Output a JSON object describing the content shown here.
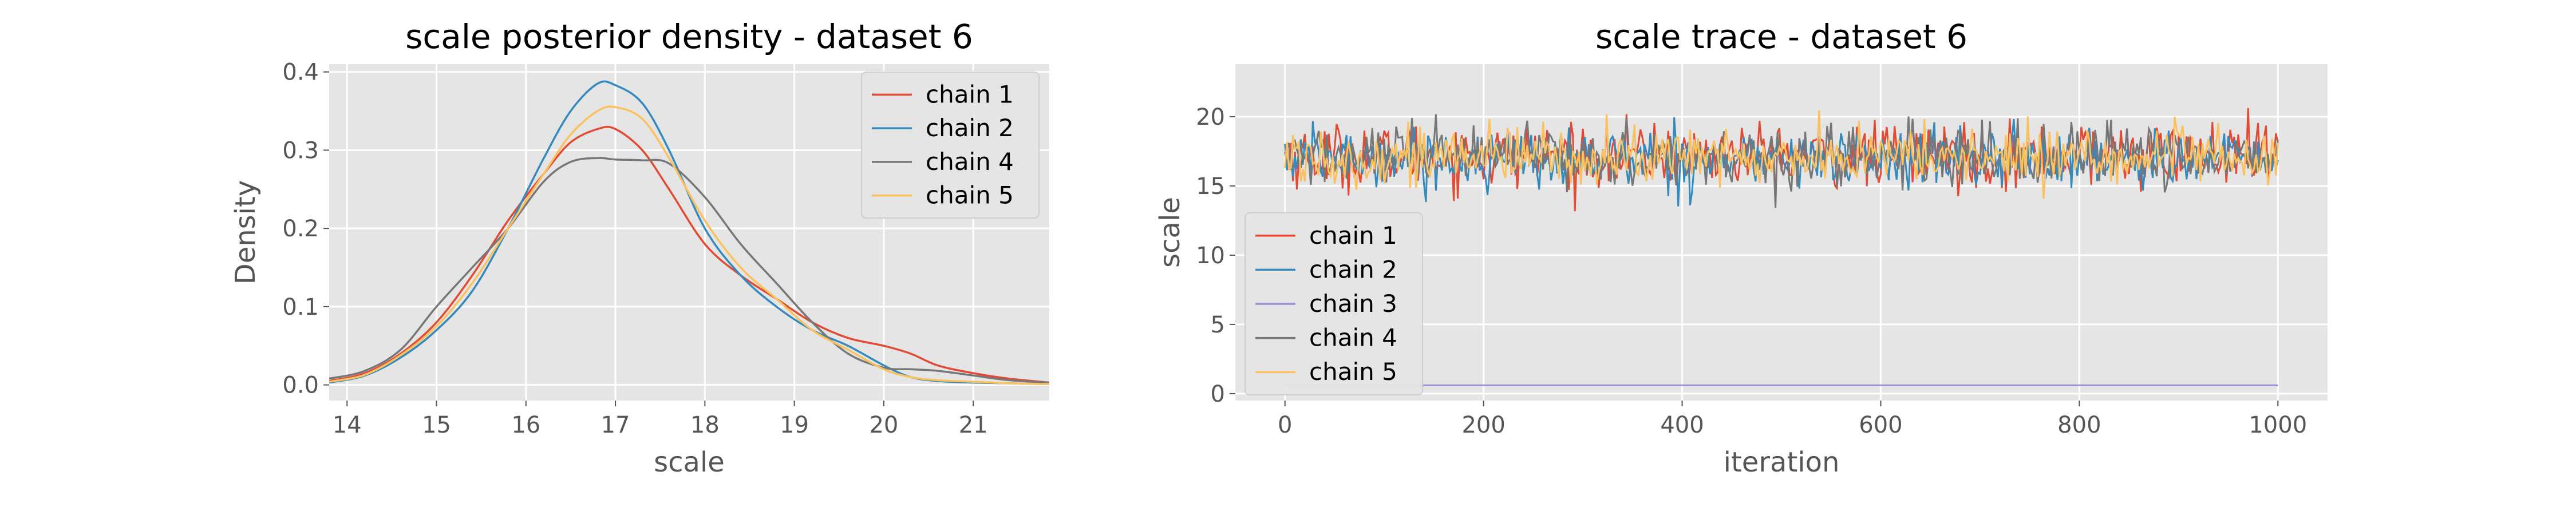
{
  "chart_data": [
    {
      "type": "line",
      "title": "scale posterior density - dataset 6",
      "xlabel": "scale",
      "ylabel": "Density",
      "xlim": [
        13.8,
        21.85
      ],
      "ylim": [
        -0.02,
        0.41
      ],
      "xticks": [
        14,
        15,
        16,
        17,
        18,
        19,
        20,
        21
      ],
      "yticks": [
        0.0,
        0.1,
        0.2,
        0.3,
        0.4
      ],
      "ytick_labels": [
        "0.0",
        "0.1",
        "0.2",
        "0.3",
        "0.4"
      ],
      "grid": true,
      "legend_position": "top-right",
      "series": [
        {
          "name": "chain 1",
          "color": "#E24A33",
          "x": [
            13.8,
            14.2,
            14.6,
            15.0,
            15.4,
            15.8,
            16.2,
            16.5,
            16.8,
            17.0,
            17.3,
            17.6,
            18.0,
            18.4,
            18.8,
            19.2,
            19.6,
            20.0,
            20.3,
            20.6,
            21.0,
            21.4,
            21.85
          ],
          "y": [
            0.005,
            0.015,
            0.04,
            0.08,
            0.14,
            0.21,
            0.27,
            0.31,
            0.327,
            0.327,
            0.3,
            0.25,
            0.18,
            0.14,
            0.11,
            0.08,
            0.06,
            0.05,
            0.04,
            0.025,
            0.015,
            0.008,
            0.003
          ]
        },
        {
          "name": "chain 2",
          "color": "#348ABD",
          "x": [
            13.8,
            14.2,
            14.6,
            15.0,
            15.4,
            15.8,
            16.2,
            16.5,
            16.8,
            17.0,
            17.3,
            17.6,
            18.0,
            18.4,
            18.8,
            19.2,
            19.6,
            20.0,
            20.3,
            20.6,
            21.0,
            21.4,
            21.85
          ],
          "y": [
            0.003,
            0.012,
            0.035,
            0.07,
            0.12,
            0.2,
            0.29,
            0.35,
            0.385,
            0.383,
            0.36,
            0.3,
            0.2,
            0.14,
            0.1,
            0.07,
            0.05,
            0.025,
            0.01,
            0.005,
            0.003,
            0.002,
            0.001
          ]
        },
        {
          "name": "chain 4",
          "color": "#777777",
          "x": [
            13.8,
            14.2,
            14.6,
            15.0,
            15.4,
            15.8,
            16.2,
            16.5,
            16.8,
            17.0,
            17.3,
            17.6,
            18.0,
            18.4,
            18.8,
            19.2,
            19.6,
            20.0,
            20.3,
            20.6,
            21.0,
            21.4,
            21.85
          ],
          "y": [
            0.008,
            0.018,
            0.045,
            0.1,
            0.15,
            0.2,
            0.26,
            0.285,
            0.29,
            0.288,
            0.287,
            0.283,
            0.24,
            0.18,
            0.13,
            0.08,
            0.04,
            0.022,
            0.02,
            0.018,
            0.012,
            0.006,
            0.003
          ]
        },
        {
          "name": "chain 5",
          "color": "#FBC15E",
          "x": [
            13.8,
            14.2,
            14.6,
            15.0,
            15.4,
            15.8,
            16.2,
            16.5,
            16.8,
            17.0,
            17.3,
            17.6,
            18.0,
            18.4,
            18.8,
            19.2,
            19.6,
            20.0,
            20.3,
            20.6,
            21.0,
            21.4,
            21.85
          ],
          "y": [
            0.004,
            0.013,
            0.038,
            0.075,
            0.13,
            0.2,
            0.27,
            0.32,
            0.35,
            0.355,
            0.34,
            0.29,
            0.21,
            0.15,
            0.11,
            0.07,
            0.045,
            0.02,
            0.01,
            0.006,
            0.004,
            0.002,
            0.001
          ]
        }
      ]
    },
    {
      "type": "line",
      "title": "scale trace - dataset 6",
      "xlabel": "iteration",
      "ylabel": "scale",
      "xlim": [
        -50,
        1050
      ],
      "ylim": [
        -0.5,
        23.8
      ],
      "xticks": [
        0,
        200,
        400,
        600,
        800,
        1000
      ],
      "yticks": [
        0,
        5,
        10,
        15,
        20
      ],
      "grid": true,
      "legend_position": "lower-left",
      "series": [
        {
          "name": "chain 1",
          "color": "#E24A33",
          "mean": 17.2,
          "sd": 1.15,
          "n_iterations": 1000
        },
        {
          "name": "chain 2",
          "color": "#348ABD",
          "mean": 17.0,
          "sd": 1.05,
          "n_iterations": 1000
        },
        {
          "name": "chain 3",
          "color": "#988ED5",
          "mean": 0.6,
          "sd": 0.0,
          "n_iterations": 1000
        },
        {
          "name": "chain 4",
          "color": "#777777",
          "mean": 17.1,
          "sd": 1.1,
          "n_iterations": 1000
        },
        {
          "name": "chain 5",
          "color": "#FBC15E",
          "mean": 17.1,
          "sd": 1.05,
          "n_iterations": 1000
        }
      ]
    }
  ]
}
